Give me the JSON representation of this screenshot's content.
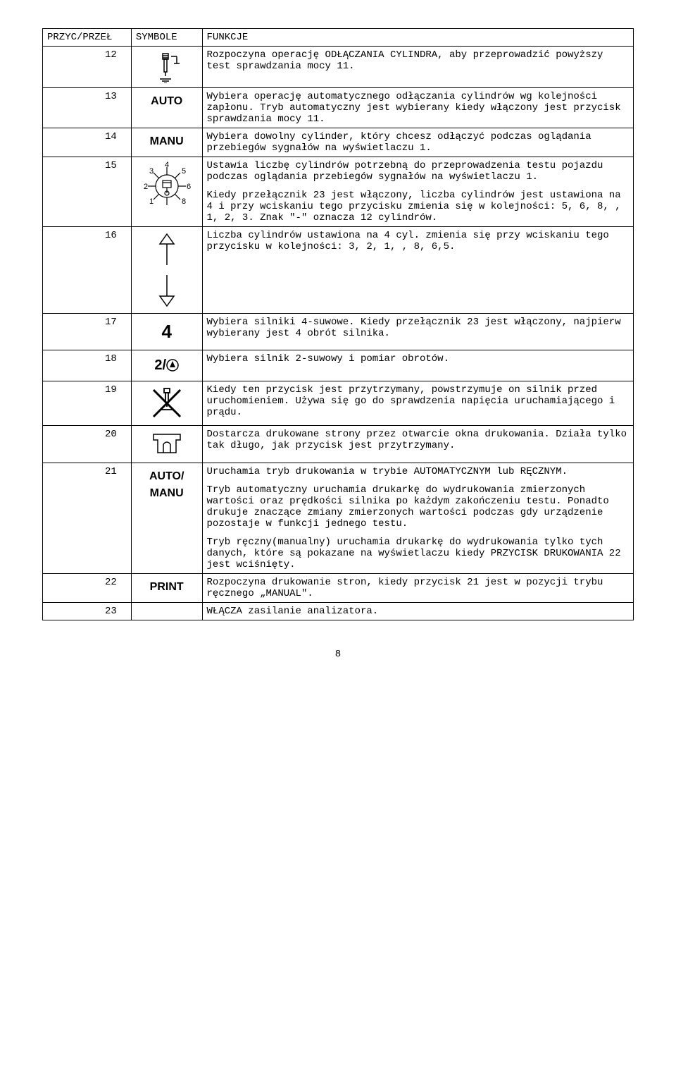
{
  "table": {
    "headers": {
      "col1": "PRZYC/PRZEŁ",
      "col2": "SYMBOLE",
      "col3": "FUNKCJE"
    },
    "rows": [
      {
        "num": "12",
        "symbol_type": "sparkplug",
        "funkcje": [
          "Rozpoczyna operację ODŁĄCZANIA CYLINDRA, aby przeprowadzić powyższy test sprawdzania mocy 11."
        ]
      },
      {
        "num": "13",
        "symbol_type": "text",
        "symbol_text": "AUTO",
        "funkcje": [
          "Wybiera operację automatycznego odłączania cylindrów wg kolejności zapłonu. Tryb automatyczny jest wybierany kiedy włączony jest przycisk sprawdzania mocy 11."
        ]
      },
      {
        "num": "14",
        "symbol_type": "text",
        "symbol_text": "MANU",
        "funkcje": [
          "Wybiera dowolny cylinder, który chcesz odłączyć podczas oglądania przebiegów sygnałów na wyświetlaczu 1."
        ]
      },
      {
        "num": "15",
        "symbol_type": "engine",
        "funkcje": [
          "Ustawia liczbę cylindrów potrzebną do przeprowadzenia testu pojazdu podczas oglądania przebiegów sygnałów na wyświetlaczu 1.",
          "Kiedy przełącznik 23 jest włączony, liczba cylindrów jest ustawiona na 4 i przy wciskaniu tego przycisku zmienia się w kolejności: 5, 6, 8, , 1, 2, 3. Znak \"-\" oznacza 12 cylindrów."
        ]
      },
      {
        "num": "16",
        "symbol_type": "updown",
        "funkcje": [
          "Liczba cylindrów ustawiona na 4 cyl. zmienia się przy wciskaniu tego przycisku w kolejności: 3, 2, 1, , 8, 6,5."
        ]
      },
      {
        "num": "17",
        "symbol_type": "text_4",
        "symbol_text": "4",
        "funkcje": [
          "Wybiera silniki 4-suwowe. Kiedy przełącznik 23 jest włączony, najpierw wybierany jest 4 obrót silnika."
        ]
      },
      {
        "num": "18",
        "symbol_type": "two_rpm",
        "symbol_text": "2/",
        "funkcje": [
          "Wybiera silnik 2-suwowy i pomiar obrotów."
        ]
      },
      {
        "num": "19",
        "symbol_type": "nospark",
        "funkcje": [
          "Kiedy ten przycisk jest przytrzymany, powstrzymuje on silnik przed uruchomieniem. Używa się go do sprawdzenia napięcia uruchamiającego i prądu."
        ]
      },
      {
        "num": "20",
        "symbol_type": "printer",
        "funkcje": [
          "Dostarcza drukowane strony przez otwarcie okna drukowania. Działa tylko tak długo, jak przycisk jest przytrzymany."
        ]
      },
      {
        "num": "21",
        "symbol_type": "text2",
        "symbol_text1": "AUTO/",
        "symbol_text2": "MANU",
        "funkcje": [
          "Uruchamia tryb drukowania w trybie AUTOMATYCZNYM lub RĘCZNYM.",
          "Tryb automatyczny uruchamia drukarkę do wydrukowania zmierzonych wartości oraz prędkości silnika po każdym zakończeniu testu. Ponadto drukuje znaczące zmiany  zmierzonych wartości podczas gdy urządzenie pozostaje w funkcji jednego testu.",
          "Tryb ręczny(manualny) uruchamia drukarkę do wydrukowania tylko tych danych, które są pokazane na wyświetlaczu kiedy PRZYCISK DRUKOWANIA 22 jest wciśnięty."
        ]
      },
      {
        "num": "22",
        "symbol_type": "text",
        "symbol_text": "PRINT",
        "funkcje": [
          "Rozpoczyna drukowanie stron, kiedy przycisk 21 jest w pozycji trybu ręcznego „MANUAL\"."
        ]
      },
      {
        "num": "23",
        "symbol_type": "none",
        "funkcje": [
          "WŁĄCZA zasilanie analizatora."
        ]
      }
    ]
  },
  "page_number": "8",
  "style": {
    "font_family": "Courier New",
    "font_size_pt": 11,
    "border_color": "#000000",
    "background": "#ffffff",
    "symbol_font": "Arial"
  }
}
